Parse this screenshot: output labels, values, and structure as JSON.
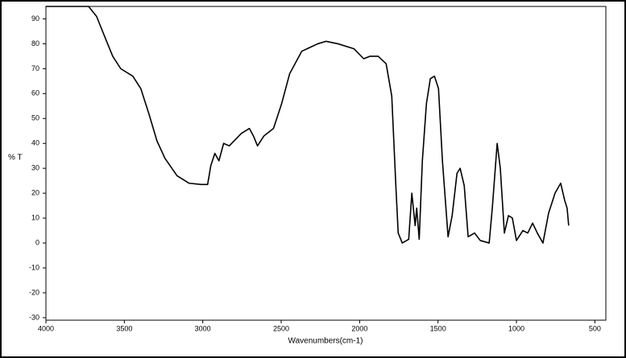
{
  "chart_data": {
    "type": "line",
    "xlabel": "Wavenumbers(cm-1)",
    "ylabel": "% T",
    "xlim": [
      4000,
      430
    ],
    "ylim": [
      -31,
      95
    ],
    "xticks": [
      4000,
      3500,
      3000,
      2500,
      2000,
      1500,
      1000,
      500
    ],
    "yticks": [
      90,
      80,
      70,
      60,
      50,
      40,
      30,
      20,
      10,
      0,
      -10,
      -20,
      -30
    ],
    "grid": false,
    "series": [
      {
        "color": "#000000",
        "x": [
          4000,
          3728,
          3677,
          3626,
          3574,
          3523,
          3446,
          3395,
          3344,
          3292,
          3241,
          3164,
          3087,
          3010,
          2969,
          2949,
          2923,
          2897,
          2867,
          2831,
          2754,
          2703,
          2677,
          2651,
          2610,
          2549,
          2497,
          2446,
          2369,
          2267,
          2215,
          2138,
          2036,
          1974,
          1933,
          1882,
          1831,
          1795,
          1769,
          1754,
          1728,
          1687,
          1667,
          1646,
          1636,
          1620,
          1600,
          1574,
          1549,
          1523,
          1497,
          1472,
          1436,
          1410,
          1379,
          1359,
          1333,
          1308,
          1267,
          1231,
          1174,
          1154,
          1123,
          1103,
          1077,
          1051,
          1026,
          1000,
          959,
          928,
          897,
          867,
          831,
          795,
          754,
          718,
          692,
          677,
          667
        ],
        "values": [
          95,
          95,
          91,
          83,
          75,
          70,
          67,
          62,
          52,
          41,
          34,
          27,
          24,
          23.5,
          23.5,
          31,
          36,
          33,
          40,
          39,
          44,
          46,
          43,
          39,
          43,
          46,
          56,
          68,
          77,
          80,
          81,
          80,
          78,
          74,
          75,
          75,
          72,
          59,
          23,
          4,
          0,
          1.5,
          20,
          7,
          14,
          1.5,
          33,
          56,
          66,
          67,
          62,
          33,
          2.5,
          11,
          28,
          30,
          23,
          2.5,
          4,
          1,
          0,
          14,
          40,
          30,
          4,
          11,
          10,
          1,
          5,
          4,
          8,
          4,
          0,
          12,
          20,
          24,
          17,
          14,
          7
        ]
      }
    ]
  }
}
